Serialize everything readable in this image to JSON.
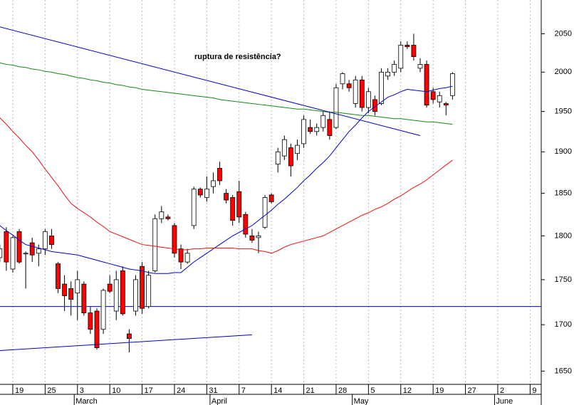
{
  "chart_data": {
    "type": "candlestick",
    "annotation": "ruptura de resistência?",
    "categories": [
      null,
      null,
      "19",
      null,
      null,
      null,
      null,
      "25",
      null,
      null,
      null,
      null,
      "3",
      null,
      null,
      null,
      null,
      "10",
      null,
      null,
      null,
      null,
      "17",
      null,
      null,
      null,
      null,
      "24",
      null,
      null,
      null,
      null,
      "31",
      null,
      null,
      null,
      null,
      "7",
      null,
      null,
      null,
      null,
      "14",
      null,
      null,
      null,
      null,
      "21",
      null,
      null,
      null,
      null,
      "28",
      null,
      null,
      null,
      null,
      "5",
      null,
      null,
      null,
      null,
      "12",
      null,
      null,
      null,
      null,
      "19",
      null,
      null,
      null,
      null,
      "27",
      null,
      null,
      null,
      null,
      "2",
      null,
      null,
      null,
      null,
      "9"
    ],
    "months": [
      null,
      null,
      null,
      null,
      null,
      null,
      null,
      null,
      null,
      null,
      null,
      null,
      "March",
      null,
      null,
      null,
      null,
      null,
      null,
      null,
      null,
      null,
      null,
      null,
      null,
      null,
      null,
      null,
      null,
      null,
      null,
      null,
      null,
      "April",
      null,
      null,
      null,
      null,
      null,
      null,
      null,
      null,
      null,
      null,
      null,
      null,
      null,
      null,
      null,
      null,
      null,
      null,
      null,
      null,
      null,
      "May",
      null,
      null,
      null,
      null,
      null,
      null,
      null,
      null,
      null,
      null,
      null,
      null,
      null,
      null,
      null,
      null,
      null,
      null,
      null,
      null,
      null,
      "June",
      null,
      null,
      null,
      null,
      null
    ],
    "open": [
      1775,
      1805,
      1762,
      1805,
      1780,
      1792,
      1780,
      1785,
      1800,
      1768,
      1745,
      1740,
      1735,
      1745,
      1713,
      1715,
      1695,
      1745,
      1715,
      1760,
      1690,
      1715,
      1765,
      1720,
      1760,
      1820,
      1822,
      1812,
      1785,
      1770,
      1812,
      1855,
      1845,
      1858,
      1880,
      1850,
      1845,
      1852,
      1825,
      1800,
      1798,
      1810,
      1848,
      1885,
      1895,
      1905,
      1898,
      1910,
      1930,
      1925,
      1930,
      1940,
      1930,
      1985,
      1985,
      1960,
      1990,
      1955,
      1965,
      1960,
      1995,
      2000,
      2005,
      2035,
      2035,
      2005,
      2010,
      1975,
      1962,
      1960,
      1970,
      null,
      null,
      null,
      null,
      null,
      null,
      null,
      null,
      null,
      null,
      null,
      null
    ],
    "high": [
      1790,
      1810,
      1800,
      1808,
      1782,
      1798,
      1790,
      1808,
      1808,
      1770,
      1755,
      1748,
      1760,
      1748,
      1720,
      1718,
      1740,
      1755,
      1760,
      1765,
      1695,
      1755,
      1770,
      1760,
      1825,
      1835,
      1825,
      1815,
      1790,
      1785,
      1858,
      1857,
      1870,
      1875,
      1888,
      1855,
      1848,
      1865,
      1828,
      1808,
      1805,
      1848,
      1850,
      1905,
      1920,
      1910,
      1915,
      1945,
      1940,
      1935,
      1950,
      1950,
      1985,
      2000,
      1990,
      1995,
      1995,
      1980,
      1970,
      2005,
      2005,
      2015,
      2040,
      2040,
      2050,
      2018,
      2015,
      1980,
      1975,
      1962,
      2000,
      null,
      null,
      null,
      null,
      null,
      null,
      null,
      null,
      null,
      null,
      null,
      null
    ],
    "low": [
      1770,
      1760,
      1758,
      1768,
      1740,
      1770,
      1765,
      1778,
      1785,
      1735,
      1715,
      1710,
      1705,
      1710,
      1690,
      1673,
      1690,
      1735,
      1705,
      1710,
      1670,
      1710,
      1712,
      1718,
      1758,
      1815,
      1818,
      1775,
      1762,
      1768,
      1808,
      1845,
      1840,
      1850,
      1860,
      1838,
      1812,
      1815,
      1798,
      1792,
      1780,
      1808,
      1838,
      1875,
      1890,
      1870,
      1890,
      1905,
      1922,
      1920,
      1925,
      1915,
      1928,
      1978,
      1975,
      1955,
      1950,
      1948,
      1945,
      1958,
      1990,
      1995,
      2000,
      2030,
      2015,
      2000,
      1955,
      1960,
      1955,
      1945,
      1965,
      null,
      null,
      null,
      null,
      null,
      null,
      null,
      null,
      null,
      null,
      null,
      null
    ],
    "close": [
      1785,
      1770,
      1798,
      1770,
      1780,
      1778,
      1785,
      1805,
      1790,
      1740,
      1732,
      1728,
      1750,
      1713,
      1695,
      1675,
      1738,
      1737,
      1750,
      1712,
      1685,
      1750,
      1718,
      1755,
      1820,
      1828,
      1820,
      1780,
      1770,
      1780,
      1855,
      1848,
      1855,
      1865,
      1865,
      1842,
      1818,
      1822,
      1802,
      1795,
      1800,
      1845,
      1840,
      1900,
      1915,
      1883,
      1908,
      1940,
      1925,
      1930,
      1945,
      1920,
      1980,
      1998,
      1980,
      1990,
      1955,
      1975,
      1950,
      2000,
      2000,
      2010,
      2035,
      2033,
      2020,
      2010,
      1958,
      1965,
      1970,
      1958,
      1998,
      null,
      null,
      null,
      null,
      null,
      null,
      null,
      null,
      null,
      null,
      null,
      null
    ],
    "up_color": "#ffffff",
    "down_color": "#ff0000",
    "moving_averages": [
      {
        "color": "#0000cc",
        "values": [
          1812,
          1806,
          1801,
          1795,
          1790,
          1788,
          1786,
          1784,
          1782,
          1781,
          1780,
          1779,
          1778,
          1776,
          1774,
          1772,
          1770,
          1768,
          1766,
          1764,
          1762,
          1761,
          1760,
          1758,
          1757,
          1757,
          1757,
          1758,
          1758,
          1764,
          1770,
          1775,
          1780,
          1785,
          1790,
          1795,
          1800,
          1804,
          1808,
          1812,
          1818,
          1824,
          1830,
          1837,
          1843,
          1850,
          1857,
          1865,
          1872,
          1880,
          1887,
          1895,
          1905,
          1915,
          1925,
          1933,
          1942,
          1950,
          1956,
          1962,
          1968,
          1971,
          1975,
          1978,
          1977,
          1976,
          1975,
          1977,
          1979,
          1980,
          1982,
          null,
          null,
          null,
          null,
          null,
          null,
          null,
          null,
          null,
          null,
          null,
          null
        ]
      },
      {
        "color": "#ee1111",
        "values": [
          1942,
          1934,
          1925,
          1917,
          1908,
          1900,
          1890,
          1879,
          1869,
          1859,
          1848,
          1838,
          1832,
          1827,
          1822,
          1816,
          1811,
          1805,
          1802,
          1799,
          1796,
          1793,
          1790,
          1789,
          1788,
          1787,
          1786,
          1785,
          1784,
          1784,
          1785,
          1785,
          1786,
          1786,
          1786,
          1786,
          1786,
          1785,
          1785,
          1785,
          1783,
          1782,
          1780,
          1783,
          1787,
          1790,
          1792,
          1794,
          1796,
          1798,
          1800,
          1804,
          1808,
          1812,
          1816,
          1820,
          1824,
          1827,
          1831,
          1834,
          1838,
          1843,
          1847,
          1852,
          1857,
          1861,
          1866,
          1872,
          1878,
          1884,
          1890,
          null,
          null,
          null,
          null,
          null,
          null,
          null,
          null,
          null,
          null,
          null,
          null
        ]
      },
      {
        "color": "#118811",
        "values": [
          2012,
          2010,
          2009,
          2007,
          2006,
          2004,
          2003,
          2001,
          2000,
          1998,
          1997,
          1995,
          1993,
          1992,
          1990,
          1989,
          1987,
          1986,
          1984,
          1983,
          1981,
          1980,
          1978,
          1977,
          1976,
          1975,
          1974,
          1973,
          1972,
          1971,
          1970,
          1969,
          1968,
          1967,
          1965,
          1964,
          1963,
          1962,
          1961,
          1960,
          1959,
          1958,
          1957,
          1956,
          1955,
          1954,
          1953,
          1953,
          1952,
          1951,
          1950,
          1949,
          1949,
          1948,
          1947,
          1946,
          1945,
          1945,
          1944,
          1943,
          1942,
          1941,
          1941,
          1940,
          1939,
          1938,
          1937,
          1937,
          1936,
          1935,
          1934,
          null,
          null,
          null,
          null,
          null,
          null,
          null,
          null,
          null,
          null,
          null,
          null
        ]
      }
    ],
    "trend_lines": [
      {
        "color": "#0000cc",
        "x": [
          0,
          65
        ],
        "values": [
          2059,
          1920
        ]
      },
      {
        "color": "#0000cc",
        "x": [
          0,
          39
        ],
        "values": [
          1672,
          1689
        ]
      }
    ],
    "reference_line": {
      "value": 1720,
      "color": "#0000cc"
    },
    "ylim": [
      1636,
      2095
    ],
    "yticks": [
      1650,
      1700,
      1750,
      1800,
      1850,
      1900,
      1950,
      2000,
      2050
    ],
    "log_scale": true,
    "grid": true
  }
}
